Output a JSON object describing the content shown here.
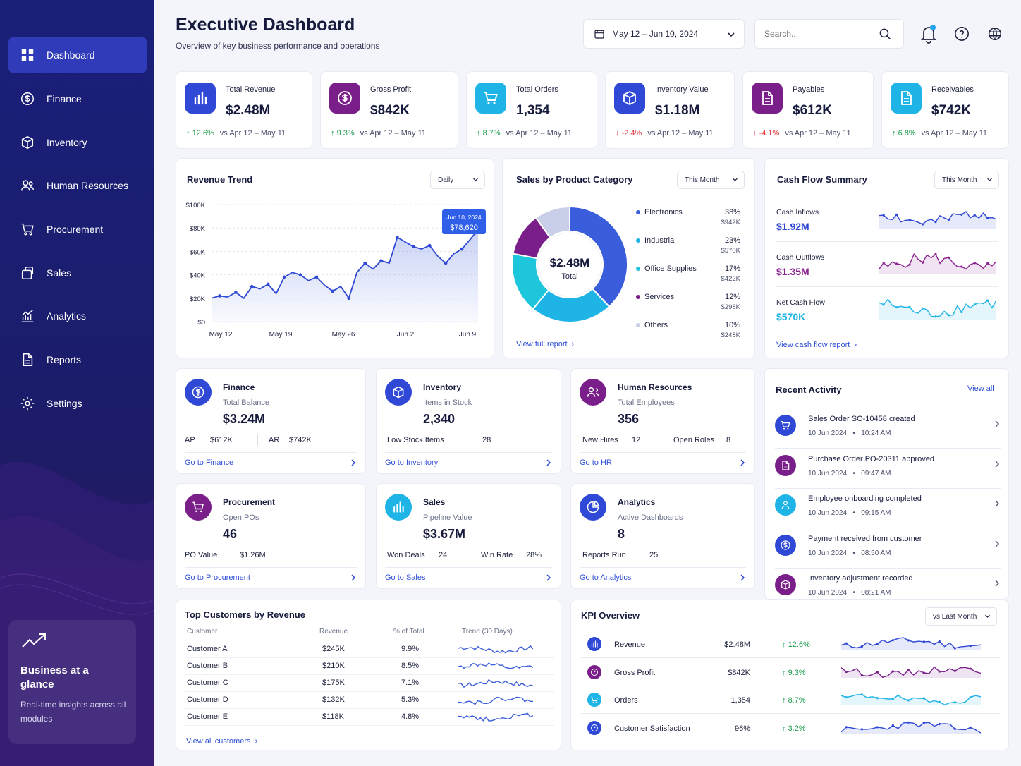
{
  "sidebar": {
    "items": [
      {
        "label": "Dashboard"
      },
      {
        "label": "Finance"
      },
      {
        "label": "Inventory"
      },
      {
        "label": "Human Resources"
      },
      {
        "label": "Procurement"
      },
      {
        "label": "Sales"
      },
      {
        "label": "Analytics"
      },
      {
        "label": "Reports"
      },
      {
        "label": "Settings"
      }
    ],
    "promo": {
      "title": "Business at a glance",
      "text": "Real-time insights across all modules"
    }
  },
  "header": {
    "title": "Executive Dashboard",
    "subtitle": "Overview of key business performance and operations",
    "date_range": "May 12 – Jun 10, 2024",
    "search_placeholder": "Search..."
  },
  "kpis": [
    {
      "label": "Total Revenue",
      "value": "$2.48M",
      "change": "12.6%",
      "dir": "up",
      "vs": "vs Apr 12 – May 11",
      "color": "#2f48d6",
      "icon": "bar-chart-icon"
    },
    {
      "label": "Gross Profit",
      "value": "$842K",
      "change": "9.3%",
      "dir": "up",
      "vs": "vs Apr 12 – May 11",
      "color": "#7a1f8a",
      "icon": "dollar-icon"
    },
    {
      "label": "Total Orders",
      "value": "1,354",
      "change": "8.7%",
      "dir": "up",
      "vs": "vs Apr 12 – May 11",
      "color": "#1fb4e6",
      "icon": "cart-icon"
    },
    {
      "label": "Inventory Value",
      "value": "$1.18M",
      "change": "-2.4%",
      "dir": "down",
      "vs": "vs Apr 12 – May 11",
      "color": "#2f48d6",
      "icon": "box-icon"
    },
    {
      "label": "Payables",
      "value": "$612K",
      "change": "-4.1%",
      "dir": "down",
      "vs": "vs Apr 12 – May 11",
      "color": "#7a1f8a",
      "icon": "document-icon"
    },
    {
      "label": "Receivables",
      "value": "$742K",
      "change": "6.8%",
      "dir": "up",
      "vs": "vs Apr 12 – May 11",
      "color": "#1fb4e6",
      "icon": "document-icon"
    }
  ],
  "revenue_trend": {
    "title": "Revenue Trend",
    "period": "Daily",
    "tooltip_date": "Jun 10, 2024",
    "tooltip_value": "$78,620"
  },
  "chart_data": {
    "type": "line",
    "y_ticks": [
      "$100K",
      "$80K",
      "$60K",
      "$40K",
      "$20K",
      "$0"
    ],
    "x_ticks": [
      "May 12",
      "May 19",
      "May 26",
      "Jun 2",
      "Jun 9"
    ],
    "ylim": [
      0,
      100000
    ],
    "values": [
      20000,
      22000,
      21000,
      25000,
      20000,
      30000,
      28000,
      32000,
      24000,
      38000,
      42000,
      40000,
      35000,
      38000,
      31000,
      26000,
      30000,
      20000,
      42000,
      50000,
      45000,
      52000,
      50000,
      72000,
      68000,
      64000,
      62000,
      65000,
      56000,
      50000,
      58000,
      62000,
      70000,
      78620
    ]
  },
  "sales_category": {
    "title": "Sales by Product Category",
    "period": "This Month",
    "total": "$2.48M",
    "total_label": "Total",
    "link": "View full report",
    "items": [
      {
        "name": "Electronics",
        "pct": "38%",
        "value": "$942K",
        "color": "#3a5ddb",
        "share": 38
      },
      {
        "name": "Industrial",
        "pct": "23%",
        "value": "$570K",
        "color": "#1fb4e6",
        "share": 23
      },
      {
        "name": "Office Supplies",
        "pct": "17%",
        "value": "$422K",
        "color": "#1ec6dc",
        "share": 17
      },
      {
        "name": "Services",
        "pct": "12%",
        "value": "$298K",
        "color": "#7a1f8a",
        "share": 12
      },
      {
        "name": "Others",
        "pct": "10%",
        "value": "$248K",
        "color": "#c9cfe8",
        "share": 10
      }
    ]
  },
  "cash_flow": {
    "title": "Cash Flow Summary",
    "period": "This Month",
    "link": "View cash flow report",
    "items": [
      {
        "label": "Cash Inflows",
        "value": "$1.92M",
        "color": "#2f48d6"
      },
      {
        "label": "Cash Outflows",
        "value": "$1.35M",
        "color": "#8a2490"
      },
      {
        "label": "Net Cash Flow",
        "value": "$570K",
        "color": "#1fb4e6"
      }
    ]
  },
  "modules": {
    "finance": {
      "name": "Finance",
      "sub": "Total Balance",
      "value": "$3.24M",
      "k1": "AP",
      "v1": "$612K",
      "k2": "AR",
      "v2": "$742K",
      "go": "Go to Finance"
    },
    "inventory": {
      "name": "Inventory",
      "sub": "Items in Stock",
      "value": "2,340",
      "k1": "Low Stock Items",
      "v1": "28",
      "go": "Go to Inventory"
    },
    "hr": {
      "name": "Human Resources",
      "sub": "Total Employees",
      "value": "356",
      "k1": "New Hires",
      "v1": "12",
      "k2": "Open Roles",
      "v2": "8",
      "go": "Go to HR"
    },
    "procurement": {
      "name": "Procurement",
      "sub": "Open POs",
      "value": "46",
      "k1": "PO Value",
      "v1": "$1.26M",
      "go": "Go to Procurement"
    },
    "sales": {
      "name": "Sales",
      "sub": "Pipeline Value",
      "value": "$3.67M",
      "k1": "Won Deals",
      "v1": "24",
      "k2": "Win Rate",
      "v2": "28%",
      "go": "Go to Sales"
    },
    "analytics": {
      "name": "Analytics",
      "sub": "Active Dashboards",
      "value": "8",
      "k1": "Reports Run",
      "v1": "25",
      "go": "Go to Analytics"
    }
  },
  "activity": {
    "title": "Recent Activity",
    "view_all": "View all",
    "items": [
      {
        "title": "Sales Order SO-10458 created",
        "date": "10 Jun 2024",
        "time": "10:24 AM",
        "color": "#2f48d6"
      },
      {
        "title": "Purchase Order PO-20311 approved",
        "date": "10 Jun 2024",
        "time": "09:47 AM",
        "color": "#7a1f8a"
      },
      {
        "title": "Employee onboarding completed",
        "date": "10 Jun 2024",
        "time": "09:15 AM",
        "color": "#1fb4e6"
      },
      {
        "title": "Payment received from customer",
        "date": "10 Jun 2024",
        "time": "08:50 AM",
        "color": "#2f48d6"
      },
      {
        "title": "Inventory adjustment recorded",
        "date": "10 Jun 2024",
        "time": "08:21 AM",
        "color": "#7a1f8a"
      }
    ]
  },
  "customers": {
    "title": "Top Customers by Revenue",
    "headers": [
      "Customer",
      "Revenue",
      "% of Total",
      "Trend (30 Days)"
    ],
    "link": "View all customers",
    "rows": [
      {
        "name": "Customer A",
        "revenue": "$245K",
        "pct": "9.9%"
      },
      {
        "name": "Customer B",
        "revenue": "$210K",
        "pct": "8.5%"
      },
      {
        "name": "Customer C",
        "revenue": "$175K",
        "pct": "7.1%"
      },
      {
        "name": "Customer D",
        "revenue": "$132K",
        "pct": "5.3%"
      },
      {
        "name": "Customer E",
        "revenue": "$118K",
        "pct": "4.8%"
      }
    ]
  },
  "kpi_overview": {
    "title": "KPI Overview",
    "period": "vs Last Month",
    "rows": [
      {
        "name": "Revenue",
        "value": "$2.48M",
        "change": "12.6%",
        "color": "#2f48d6"
      },
      {
        "name": "Gross Profit",
        "value": "$842K",
        "change": "9.3%",
        "color": "#7a1f8a"
      },
      {
        "name": "Orders",
        "value": "1,354",
        "change": "8.7%",
        "color": "#1fb4e6"
      },
      {
        "name": "Customer Satisfaction",
        "value": "96%",
        "change": "3.2%",
        "color": "#2f48d6"
      }
    ]
  }
}
